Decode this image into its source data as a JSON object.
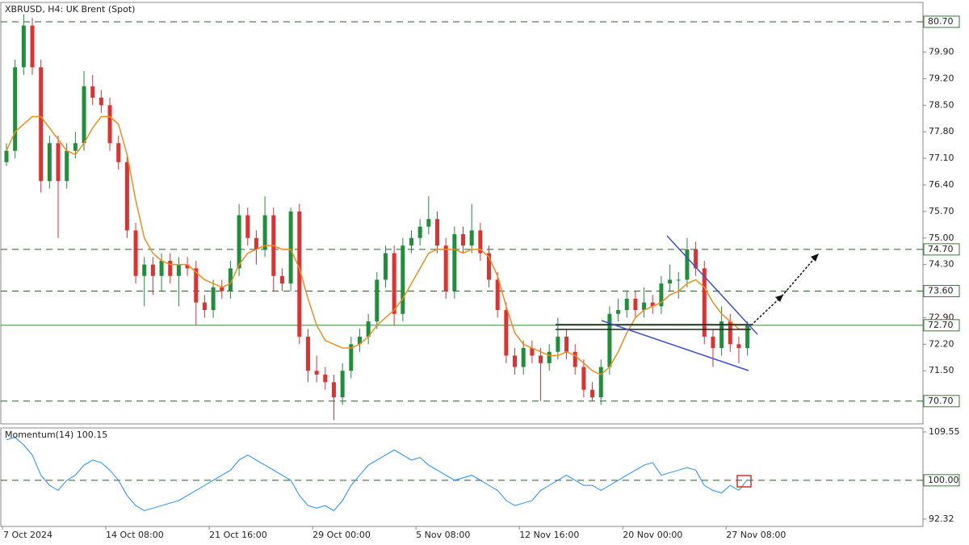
{
  "chart_data": [
    {
      "type": "candlestick",
      "title": "XBRUSD, H4:  UK Brent (Spot)",
      "categories": [
        "7 Oct 2024",
        null,
        null,
        null,
        null,
        null,
        null,
        null,
        null,
        null,
        null,
        null,
        "14 Oct 08:00",
        null,
        null,
        null,
        null,
        null,
        null,
        null,
        null,
        null,
        null,
        null,
        "21 Oct 16:00",
        null,
        null,
        null,
        null,
        null,
        null,
        null,
        null,
        null,
        null,
        null,
        "29 Oct 00:00",
        null,
        null,
        null,
        null,
        null,
        null,
        null,
        null,
        null,
        null,
        null,
        "5 Nov 08:00",
        null,
        null,
        null,
        null,
        null,
        null,
        null,
        null,
        null,
        null,
        null,
        "12 Nov 16:00",
        null,
        null,
        null,
        null,
        null,
        null,
        null,
        null,
        null,
        null,
        null,
        "20 Nov 00:00",
        null,
        null,
        null,
        null,
        null,
        null,
        null,
        null,
        null,
        null,
        null,
        "27 Nov 08:00",
        null,
        null
      ],
      "open": [
        77.0,
        77.3,
        79.5,
        80.6,
        79.5,
        76.5,
        77.5,
        76.5,
        77.3,
        77.5,
        79.0,
        78.7,
        78.5,
        77.5,
        77.0,
        75.2,
        74.0,
        74.3,
        74.0,
        74.4,
        74.0,
        74.3,
        74.2,
        73.3,
        73.1,
        73.7,
        73.6,
        74.2,
        75.6,
        75.0,
        74.7,
        75.6,
        74.0,
        73.8,
        75.7,
        72.4,
        71.5,
        71.4,
        71.2,
        70.8,
        71.5,
        72.2,
        72.4,
        72.8,
        73.9,
        74.6,
        73.0,
        74.8,
        75.0,
        75.3,
        75.5,
        74.8,
        73.6,
        75.1,
        74.8,
        75.2,
        74.6,
        73.9,
        73.1,
        71.9,
        71.6,
        72.1,
        71.9,
        71.7,
        72.0,
        72.4,
        72.0,
        71.6,
        71.0,
        70.8,
        71.6,
        73.0,
        73.1,
        73.4,
        73.1,
        73.3,
        73.2,
        73.8,
        73.9,
        73.9,
        74.7,
        74.2,
        72.4,
        72.1,
        72.8,
        72.2,
        72.1
      ],
      "high": [
        77.5,
        79.7,
        80.9,
        80.8,
        79.7,
        77.7,
        77.7,
        77.5,
        77.8,
        79.4,
        79.3,
        78.9,
        78.7,
        77.7,
        77.2,
        75.4,
        74.5,
        74.5,
        74.6,
        74.6,
        74.5,
        74.5,
        74.4,
        73.5,
        73.9,
        73.9,
        74.4,
        75.9,
        75.8,
        75.2,
        76.1,
        75.8,
        74.2,
        75.8,
        75.9,
        72.6,
        71.9,
        71.6,
        71.4,
        71.7,
        72.4,
        72.6,
        73.0,
        74.1,
        74.8,
        74.8,
        75.0,
        75.2,
        75.5,
        76.1,
        75.7,
        75.0,
        75.3,
        75.3,
        75.9,
        75.4,
        74.8,
        74.1,
        73.3,
        72.1,
        72.3,
        72.3,
        72.1,
        72.2,
        72.9,
        72.6,
        72.2,
        71.8,
        71.2,
        71.8,
        73.2,
        73.4,
        73.6,
        73.6,
        73.7,
        73.5,
        74.0,
        74.3,
        74.1,
        75.0,
        74.9,
        74.4,
        72.6,
        73.2,
        73.0,
        72.4,
        72.8
      ],
      "low": [
        76.9,
        77.1,
        79.3,
        79.3,
        76.2,
        76.3,
        75.0,
        76.3,
        77.1,
        77.3,
        78.5,
        78.3,
        77.3,
        76.8,
        75.0,
        73.8,
        73.2,
        73.5,
        73.6,
        73.8,
        73.2,
        74.0,
        72.7,
        72.9,
        72.9,
        73.4,
        73.4,
        74.0,
        74.8,
        74.3,
        74.5,
        73.6,
        73.6,
        73.6,
        72.2,
        71.2,
        71.2,
        71.0,
        70.2,
        70.6,
        71.3,
        72.0,
        72.2,
        72.6,
        73.7,
        72.7,
        72.8,
        74.6,
        74.8,
        75.1,
        74.6,
        73.4,
        73.4,
        74.6,
        74.6,
        74.4,
        73.7,
        72.9,
        71.7,
        71.4,
        71.4,
        71.7,
        70.7,
        71.5,
        71.8,
        71.8,
        71.4,
        70.8,
        70.7,
        70.6,
        71.4,
        72.8,
        72.9,
        72.9,
        72.9,
        73.0,
        73.0,
        73.6,
        73.4,
        73.7,
        74.0,
        72.2,
        71.6,
        71.9,
        72.0,
        71.7,
        71.9
      ],
      "close": [
        77.3,
        79.5,
        80.6,
        79.5,
        76.5,
        77.5,
        76.5,
        77.3,
        77.5,
        79.0,
        78.7,
        78.5,
        77.5,
        77.0,
        75.2,
        74.0,
        74.3,
        74.0,
        74.4,
        74.0,
        74.3,
        74.2,
        73.3,
        73.1,
        73.7,
        73.6,
        74.2,
        75.6,
        75.0,
        74.7,
        75.6,
        74.0,
        73.8,
        75.7,
        72.4,
        71.5,
        71.4,
        71.2,
        70.8,
        71.5,
        72.2,
        72.4,
        72.8,
        73.9,
        74.6,
        73.0,
        74.8,
        75.0,
        75.3,
        75.5,
        74.8,
        73.6,
        75.1,
        74.8,
        75.2,
        74.6,
        73.9,
        73.1,
        71.9,
        71.6,
        72.1,
        71.9,
        71.7,
        72.0,
        72.4,
        72.0,
        71.6,
        71.0,
        70.8,
        71.6,
        73.0,
        73.1,
        73.4,
        73.1,
        73.3,
        73.2,
        73.8,
        73.9,
        73.9,
        74.7,
        74.2,
        72.4,
        72.1,
        72.8,
        72.2,
        72.1,
        72.7
      ],
      "up_color": "#1f8f3a",
      "down_color": "#e03131",
      "ma": {
        "color": "#f28c1b",
        "values": [
          77.3,
          77.8,
          78.0,
          78.2,
          78.2,
          77.9,
          77.6,
          77.3,
          77.2,
          77.5,
          77.9,
          78.2,
          78.2,
          78.0,
          77.2,
          76.0,
          75.0,
          74.6,
          74.4,
          74.3,
          74.3,
          74.3,
          74.1,
          73.9,
          73.8,
          73.7,
          73.8,
          74.3,
          74.6,
          74.7,
          74.8,
          74.8,
          74.7,
          74.7,
          74.2,
          73.4,
          72.7,
          72.3,
          72.2,
          72.1,
          72.1,
          72.2,
          72.4,
          72.7,
          72.9,
          73.1,
          73.4,
          73.8,
          74.2,
          74.6,
          74.7,
          74.7,
          74.7,
          74.6,
          74.7,
          74.7,
          74.5,
          74.0,
          73.2,
          72.5,
          72.2,
          72.1,
          72.0,
          71.9,
          71.9,
          72.0,
          71.9,
          71.7,
          71.5,
          71.4,
          71.6,
          72.0,
          72.5,
          72.9,
          73.1,
          73.2,
          73.3,
          73.5,
          73.6,
          73.8,
          73.9,
          73.7,
          73.3,
          73.0,
          72.8,
          72.6,
          72.6
        ]
      },
      "ylim": [
        70.1,
        81.21
      ],
      "yticks": [
        {
          "value": 79.9,
          "label": "79.90"
        },
        {
          "value": 79.2,
          "label": "79.20"
        },
        {
          "value": 78.5,
          "label": "78.50"
        },
        {
          "value": 77.8,
          "label": "77.80"
        },
        {
          "value": 77.1,
          "label": "77.10"
        },
        {
          "value": 76.4,
          "label": "76.40"
        },
        {
          "value": 75.7,
          "label": "75.70"
        },
        {
          "value": 75,
          "label": "75.00"
        },
        {
          "value": 74.3,
          "label": "74.30"
        },
        {
          "value": 72.9,
          "label": "72.90"
        },
        {
          "value": 72.2,
          "label": "72.20"
        },
        {
          "value": 71.5,
          "label": "71.50"
        }
      ],
      "levels": [
        {
          "value": 80.7,
          "label": "80.70"
        },
        {
          "value": 74.7,
          "label": "74.70"
        },
        {
          "value": 73.6,
          "label": "73.60"
        },
        {
          "value": 72.7,
          "label": "72.70"
        },
        {
          "value": 70.7,
          "label": "70.70"
        }
      ],
      "levels_dashed": [
        true,
        true,
        true,
        false,
        true
      ]
    },
    {
      "type": "line",
      "title": "Momentum(14) 100.15",
      "color": "#1e90ff",
      "values": [
        108,
        108.5,
        107,
        105,
        101,
        99,
        98,
        100,
        101,
        103,
        104,
        103.5,
        102,
        100,
        97,
        95,
        94,
        94.5,
        95,
        95.5,
        96,
        97,
        98,
        99,
        100,
        101,
        102,
        104,
        105,
        104,
        103,
        102,
        101,
        100,
        97,
        95,
        94.5,
        95,
        94,
        96,
        99,
        101,
        103,
        104,
        105,
        106,
        105,
        104,
        104.5,
        103,
        102,
        101,
        100,
        100.5,
        101,
        100,
        99,
        98,
        96,
        95,
        95.5,
        96,
        98,
        99,
        100,
        101,
        100,
        99,
        99,
        98,
        99,
        100,
        101,
        102,
        103,
        103.5,
        101,
        101.5,
        102,
        102.5,
        102,
        99,
        98,
        97.5,
        99,
        98,
        100.15
      ],
      "ylim": [
        90.88,
        110.35
      ],
      "yticks": [
        109.55,
        92.32
      ],
      "levels": [
        {
          "value": 100,
          "label": "100.00"
        }
      ],
      "levels_dashed": [
        true
      ]
    }
  ]
}
